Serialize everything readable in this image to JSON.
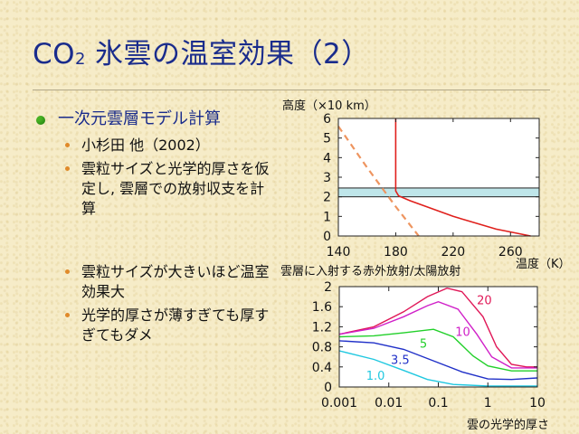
{
  "slide": {
    "title_main": "CO",
    "title_sub": "2",
    "title_rest": "氷雲の温室効果（2）"
  },
  "bullets": {
    "level1": "一次元雲層モデル計算",
    "level2_a": [
      "小杉田 他（2002）",
      "雲粒サイズと光学的厚さを仮定し, 雲層での放射収支を計算"
    ],
    "level2_b": [
      "雲粒サイズが大きいほど温室効果大",
      "光学的厚さが薄すぎても厚すぎてもダメ"
    ]
  },
  "chart_data": [
    {
      "type": "line",
      "ylabel": "高度（×10 km）",
      "xlabel": "温度（K）",
      "xlim": [
        140,
        280
      ],
      "ylim": [
        0,
        6
      ],
      "x_ticks": [
        "140",
        "180",
        "220",
        "260"
      ],
      "y_ticks": [
        "0",
        "1",
        "2",
        "3",
        "4",
        "5",
        "6"
      ],
      "series": [
        {
          "style": "solid",
          "color": "#e0201c",
          "points": [
            [
              180,
              6
            ],
            [
              180,
              2.3
            ],
            [
              182,
              2.05
            ],
            [
              190,
              1.8
            ],
            [
              220,
              1.0
            ],
            [
              250,
              0.35
            ],
            [
              274,
              0
            ]
          ]
        },
        {
          "style": "dashed",
          "color": "#ee9560",
          "points": [
            [
              140,
              5.6
            ],
            [
              160,
              3.5
            ],
            [
              180,
              1.5
            ],
            [
              196,
              0
            ]
          ]
        }
      ],
      "cloud_layer": [
        2.0,
        2.45
      ],
      "cloud_color": "#bfe6ea"
    },
    {
      "type": "line",
      "ylabel": "雲層に入射する赤外放射/太陽放射",
      "xlabel": "雲の光学的厚さ",
      "xscale": "log",
      "xlim": [
        0.001,
        10
      ],
      "ylim": [
        0,
        2
      ],
      "x_ticks": [
        "0.001",
        "0.01",
        "0.1",
        "1",
        "10"
      ],
      "y_ticks": [
        "0",
        "0.4",
        "0.8",
        "1.2",
        "1.6",
        "2"
      ],
      "series": [
        {
          "name": "20",
          "color": "#e01858",
          "points": [
            [
              0.001,
              1.05
            ],
            [
              0.005,
              1.2
            ],
            [
              0.02,
              1.5
            ],
            [
              0.06,
              1.8
            ],
            [
              0.15,
              1.97
            ],
            [
              0.3,
              1.9
            ],
            [
              0.8,
              1.4
            ],
            [
              1.5,
              0.8
            ],
            [
              3,
              0.45
            ],
            [
              6,
              0.4
            ],
            [
              10,
              0.4
            ]
          ]
        },
        {
          "name": "10",
          "color": "#d020c8",
          "points": [
            [
              0.001,
              1.05
            ],
            [
              0.005,
              1.17
            ],
            [
              0.02,
              1.4
            ],
            [
              0.06,
              1.62
            ],
            [
              0.1,
              1.7
            ],
            [
              0.25,
              1.55
            ],
            [
              0.6,
              1.05
            ],
            [
              1.2,
              0.6
            ],
            [
              3,
              0.38
            ],
            [
              10,
              0.38
            ]
          ]
        },
        {
          "name": "5",
          "color": "#22d02a",
          "points": [
            [
              0.001,
              1.0
            ],
            [
              0.005,
              1.02
            ],
            [
              0.02,
              1.08
            ],
            [
              0.08,
              1.15
            ],
            [
              0.2,
              1.0
            ],
            [
              0.5,
              0.62
            ],
            [
              1,
              0.42
            ],
            [
              3,
              0.32
            ],
            [
              10,
              0.32
            ]
          ]
        },
        {
          "name": "3.5",
          "color": "#2030c8",
          "points": [
            [
              0.001,
              0.92
            ],
            [
              0.005,
              0.88
            ],
            [
              0.02,
              0.75
            ],
            [
              0.08,
              0.52
            ],
            [
              0.3,
              0.3
            ],
            [
              1,
              0.16
            ],
            [
              3,
              0.15
            ],
            [
              10,
              0.18
            ]
          ]
        },
        {
          "name": "1.0",
          "color": "#20c8e0",
          "points": [
            [
              0.001,
              0.72
            ],
            [
              0.005,
              0.55
            ],
            [
              0.02,
              0.33
            ],
            [
              0.06,
              0.15
            ],
            [
              0.2,
              0.05
            ],
            [
              1,
              0.02
            ],
            [
              10,
              0.02
            ]
          ]
        }
      ]
    }
  ]
}
